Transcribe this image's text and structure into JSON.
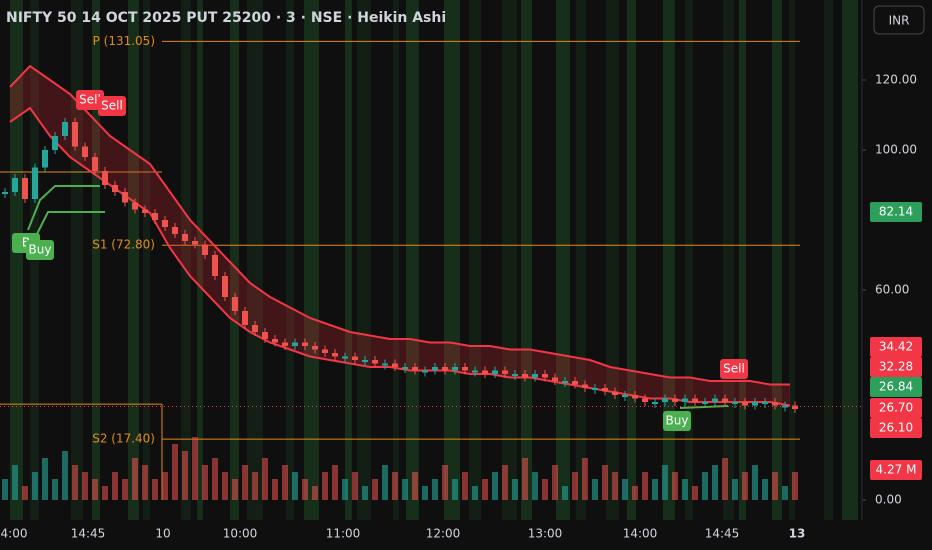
{
  "chart_data": {
    "type": "candles",
    "title": "NIFTY 50 14 OCT 2025 PUT 25200 · 3 · NSE · Heikin Ashi",
    "currency": "INR",
    "ylim": [
      0,
      140
    ],
    "yticks": [
      {
        "value": 120,
        "label": "120.00"
      },
      {
        "value": 100,
        "label": "100.00"
      },
      {
        "value": 60,
        "label": "60.00"
      },
      {
        "value": 0,
        "label": "0.00"
      }
    ],
    "categories": [
      "4:00",
      "14:45",
      "10",
      "10:00",
      "11:00",
      "12:00",
      "13:00",
      "14:00",
      "14:45",
      "13"
    ],
    "closes": [
      88,
      92,
      86,
      95,
      100,
      104,
      108,
      101,
      98,
      94,
      90,
      88,
      85,
      83,
      82,
      80,
      78,
      76,
      74,
      73,
      70,
      64,
      58,
      54,
      50,
      48,
      46,
      45,
      44,
      45,
      44,
      43,
      42,
      41,
      41,
      40,
      40,
      39,
      39,
      38,
      38,
      37,
      37,
      38,
      37,
      38,
      37,
      37,
      36,
      37,
      36,
      36,
      35,
      36,
      35,
      34,
      34,
      33,
      32,
      32,
      31,
      30,
      30,
      29,
      28,
      28,
      29,
      28,
      29,
      28,
      28,
      29,
      28,
      28,
      27,
      28,
      28,
      27,
      27,
      26
    ],
    "volumes": [
      3,
      5,
      2,
      4,
      6,
      3,
      7,
      5,
      4,
      3,
      2,
      4,
      3,
      6,
      5,
      3,
      4,
      8,
      7,
      9,
      5,
      6,
      4,
      3,
      5,
      4,
      6,
      3,
      5,
      4,
      3,
      2,
      4,
      5,
      3,
      4,
      2,
      3,
      5,
      4,
      3,
      4,
      2,
      3,
      5,
      3,
      4,
      2,
      3,
      4,
      5,
      3,
      6,
      4,
      3,
      5,
      2,
      4,
      6,
      3,
      5,
      4,
      3,
      2,
      4,
      3,
      5,
      4,
      3,
      2,
      4,
      5,
      6,
      3,
      4,
      5,
      3,
      4,
      2,
      4
    ],
    "band_upper": [
      118,
      124,
      120,
      116,
      110,
      104,
      100,
      96,
      88,
      80,
      74,
      68,
      62,
      58,
      55,
      52,
      50,
      48,
      47,
      46,
      46,
      45,
      45,
      44,
      44,
      43,
      43,
      42,
      41,
      40,
      38,
      37,
      36,
      35,
      35,
      34,
      34,
      34,
      33,
      33
    ],
    "band_lower": [
      108,
      112,
      104,
      98,
      94,
      90,
      86,
      82,
      72,
      64,
      58,
      52,
      48,
      45,
      43,
      41,
      40,
      39,
      38,
      38,
      37,
      37,
      37,
      36,
      36,
      35,
      35,
      34,
      33,
      32,
      31,
      30,
      29,
      29,
      28,
      28,
      28,
      28,
      28,
      27
    ],
    "pivots": [
      {
        "value": 131.05,
        "label": "P  (131.05)"
      },
      {
        "value": 72.8,
        "label": "S1  (72.80)"
      },
      {
        "value": 17.4,
        "label": "S2  (17.40)"
      }
    ],
    "prior_levels": [
      93.7,
      27.4
    ],
    "signals": [
      "Sell",
      "Sell",
      "B",
      "Buy",
      "Sell",
      "Buy"
    ],
    "price_labels": [
      82.14,
      34.42,
      32.28,
      26.84,
      {
        "value": 26.7,
        "label": "26.70"
      },
      {
        "value": 26.1,
        "label": "26.10"
      }
    ],
    "price_label_colors": [
      "#2e9e5b",
      "#f23645",
      "#f23645",
      "#2e9e5b",
      "#f23645",
      "#f23645"
    ],
    "volume_label": {
      "value": 4.27,
      "label": "4.27 M"
    }
  }
}
